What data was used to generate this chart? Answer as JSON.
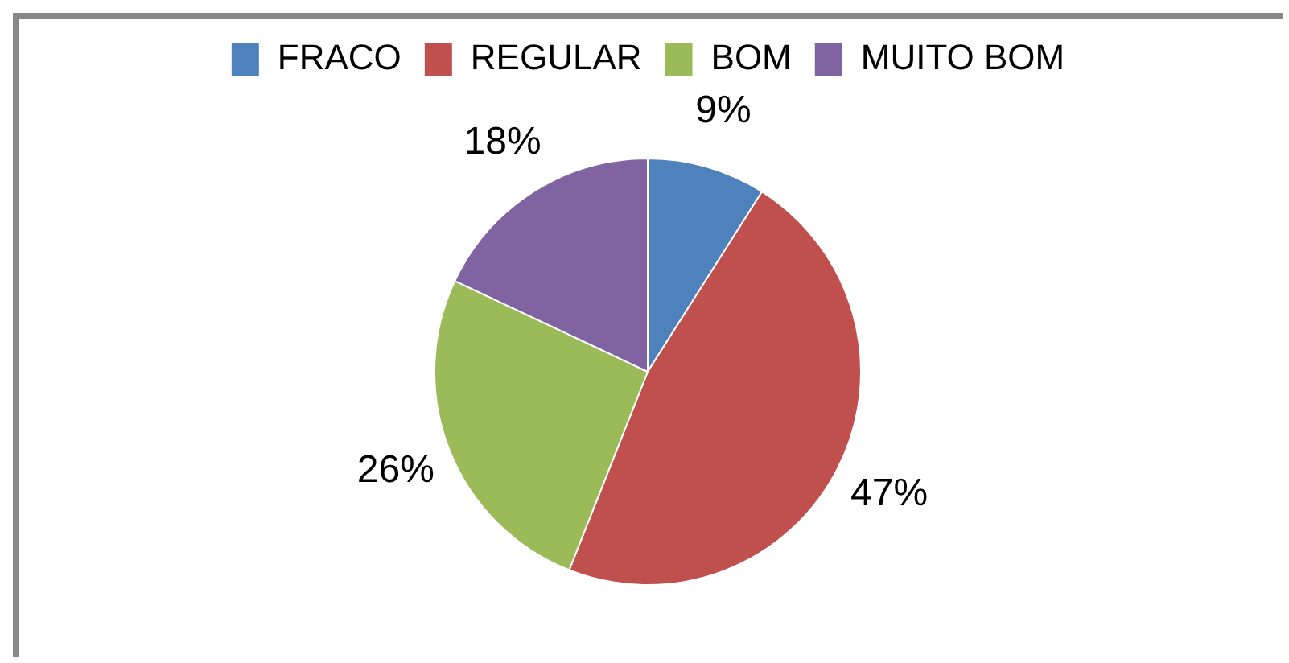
{
  "chart_data": {
    "type": "pie",
    "categories": [
      "FRACO",
      "REGULAR",
      "BOM",
      "MUITO BOM"
    ],
    "values": [
      9,
      47,
      26,
      18
    ],
    "colors": [
      "#4f81bd",
      "#c0504d",
      "#9bbb59",
      "#8064a2"
    ],
    "value_labels": [
      "9%",
      "47%",
      "26%",
      "18%"
    ],
    "legend": "top"
  }
}
